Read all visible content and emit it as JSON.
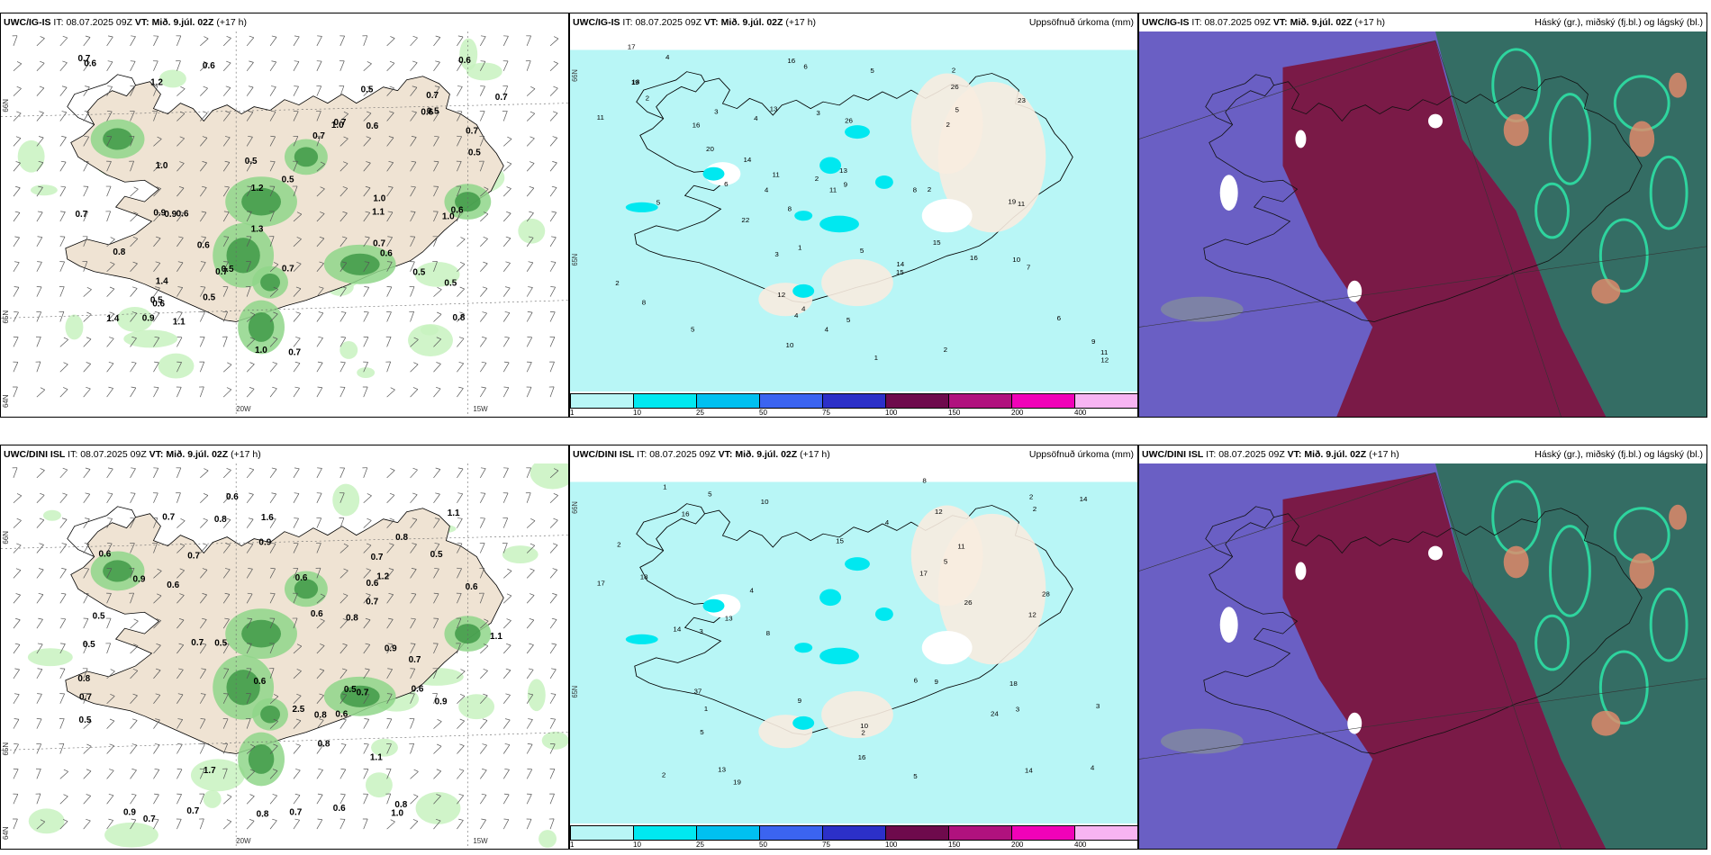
{
  "panels": [
    {
      "model": "UWC/IG-IS",
      "it_label": "IT:",
      "it_value": "08.07.2025 09Z",
      "vt_label": "VT:",
      "vt_value": "Mið. 9.júl. 02Z",
      "lead": "(+17 h)",
      "right_title": "",
      "kind": "precip-wind",
      "coords": [
        "66N",
        "65N",
        "64N",
        "20W",
        "15W"
      ],
      "values": [
        "1.4",
        "0.6",
        "0.7",
        "1.1",
        "0.8",
        "0.6",
        "0.6",
        "0.7",
        "0.7",
        "1.1",
        "1.0",
        "0.6",
        "0.7",
        "0.7",
        "0.6",
        "0.5",
        "0.6",
        "1.2",
        "0.5",
        "0.5",
        "0.6",
        "0.5",
        "1.0",
        "0.9",
        "1.3",
        "0.7",
        "0.9",
        "0.6",
        "0.6",
        "0.8",
        "0.5",
        "0.7",
        "0.9",
        "0.5",
        "0.7",
        "0.6",
        "1.0",
        "0.5",
        "1.0",
        "0.7",
        "0.5",
        "1.2",
        "1.4",
        "0.7",
        "0.5",
        "0.7",
        "1.0",
        "0.5"
      ]
    },
    {
      "model": "UWC/IG-IS",
      "it_label": "IT:",
      "it_value": "08.07.2025 09Z",
      "vt_label": "VT:",
      "vt_value": "Mið. 9.júl. 02Z",
      "lead": "(+17 h)",
      "right_title": "Uppsöfnuð úrkoma (mm)",
      "kind": "accum",
      "coords": [
        "66N",
        "65N"
      ],
      "values": [
        "2",
        "2",
        "2",
        "16",
        "11",
        "4",
        "14",
        "4",
        "3",
        "5",
        "11",
        "2",
        "13",
        "23",
        "19",
        "10",
        "13",
        "11",
        "8",
        "5",
        "15",
        "6",
        "8",
        "17",
        "18",
        "16",
        "15",
        "9",
        "11",
        "5",
        "4",
        "14",
        "6",
        "5",
        "6",
        "19",
        "20",
        "26",
        "4",
        "22",
        "4",
        "12",
        "3",
        "11",
        "9",
        "1",
        "1",
        "2",
        "2",
        "3",
        "16",
        "26",
        "12",
        "10",
        "5",
        "5",
        "2",
        "7",
        "8",
        "4"
      ],
      "colorbar": {
        "ticks": [
          "1",
          "10",
          "25",
          "50",
          "75",
          "100",
          "150",
          "200",
          "400"
        ],
        "colors": [
          "#b8f6f6",
          "#00e8f0",
          "#00c0f0",
          "#3b64f0",
          "#2c30c8",
          "#6e0a4c",
          "#b0127e",
          "#f002b8",
          "#f7b4f2"
        ]
      }
    },
    {
      "model": "UWC/IG-IS",
      "it_label": "IT:",
      "it_value": "08.07.2025 09Z",
      "vt_label": "VT:",
      "vt_value": "Mið. 9.júl. 02Z",
      "lead": "(+17 h)",
      "right_title": "Háský (gr.), miðský (fj.bl.) og lágský (bl.)",
      "kind": "clouds"
    },
    {
      "model": "UWC/DINI ISL",
      "it_label": "IT:",
      "it_value": "08.07.2025 09Z",
      "vt_label": "VT:",
      "vt_value": "Mið. 9.júl. 02Z",
      "lead": "(+17 h)",
      "right_title": "",
      "kind": "precip-wind",
      "coords": [
        "66N",
        "65N",
        "64N",
        "20W",
        "15W"
      ],
      "values": [
        "0.8",
        "1.0",
        "2.5",
        "0.8",
        "0.7",
        "0.8",
        "0.7",
        "0.7",
        "0.9",
        "0.5",
        "0.6",
        "0.7",
        "1.1",
        "0.8",
        "0.6",
        "0.5",
        "1.6",
        "0.7",
        "0.5",
        "0.8",
        "0.9",
        "1.1",
        "0.5",
        "0.6",
        "0.7",
        "0.8",
        "0.6",
        "0.6",
        "0.5",
        "1.2",
        "0.7",
        "0.7",
        "0.6",
        "0.9",
        "0.7",
        "1.1",
        "0.7",
        "0.8",
        "0.6",
        "0.7",
        "0.9",
        "0.6",
        "0.6",
        "0.6",
        "0.5",
        "0.8",
        "0.9",
        "0.6",
        "1.7"
      ]
    },
    {
      "model": "UWC/DINI ISL",
      "it_label": "IT:",
      "it_value": "08.07.2025 09Z",
      "vt_label": "VT:",
      "vt_value": "Mið. 9.júl. 02Z",
      "lead": "(+17 h)",
      "right_title": "Uppsöfnuð úrkoma (mm)",
      "kind": "accum",
      "coords": [
        "66N",
        "65N"
      ],
      "values": [
        "2",
        "2",
        "10",
        "4",
        "10",
        "11",
        "8",
        "12",
        "9",
        "2",
        "17",
        "26",
        "19",
        "16",
        "5",
        "13",
        "12",
        "15",
        "18",
        "18",
        "14",
        "14",
        "14",
        "17",
        "24",
        "9",
        "37",
        "13",
        "16",
        "28",
        "4",
        "5",
        "3",
        "3",
        "2",
        "2",
        "8",
        "1",
        "3",
        "5",
        "1",
        "5",
        "4",
        "6"
      ],
      "colorbar": {
        "ticks": [
          "1",
          "10",
          "25",
          "50",
          "75",
          "100",
          "150",
          "200",
          "400"
        ],
        "colors": [
          "#b8f6f6",
          "#00e8f0",
          "#00c0f0",
          "#3b64f0",
          "#2c30c8",
          "#6e0a4c",
          "#b0127e",
          "#f002b8",
          "#f7b4f2"
        ]
      }
    },
    {
      "model": "UWC/DINI ISL",
      "it_label": "IT:",
      "it_value": "08.07.2025 09Z",
      "vt_label": "VT:",
      "vt_value": "Mið. 9.júl. 02Z",
      "lead": "(+17 h)",
      "right_title": "Háský (gr.), miðský (fj.bl.) og lágský (bl.)",
      "kind": "clouds"
    }
  ]
}
